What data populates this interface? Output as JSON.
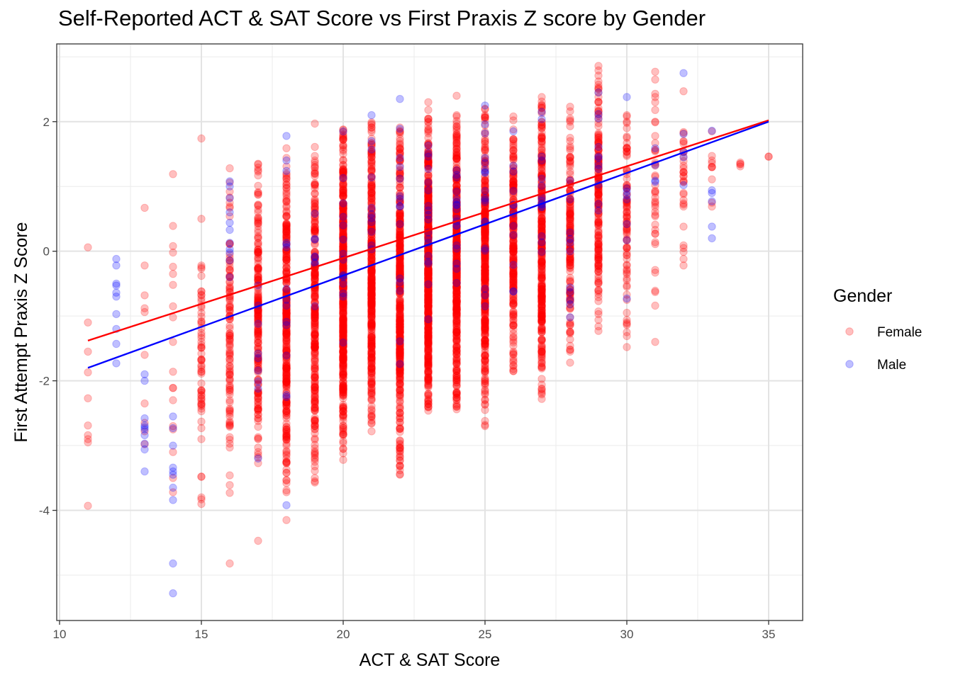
{
  "chart_data": {
    "type": "scatter",
    "title": "Self-Reported ACT & SAT Score vs First Praxis Z score by Gender",
    "xlabel": "ACT & SAT Score",
    "ylabel": "First Attempt Praxis Z Score",
    "xlim": [
      9.9,
      36.2
    ],
    "ylim": [
      -5.7,
      3.2
    ],
    "x_ticks": [
      10,
      15,
      20,
      25,
      30,
      35
    ],
    "y_ticks": [
      -4,
      -2,
      0,
      2
    ],
    "x_minor": [
      12.5,
      17.5,
      22.5,
      27.5,
      32.5
    ],
    "y_minor": [
      -5,
      -3,
      -1,
      1,
      3
    ],
    "grid": true,
    "legend_title": "Gender",
    "legend_position": "right",
    "point_alpha": 0.25,
    "series": [
      {
        "name": "Female",
        "color": "#ff0000",
        "trend_line": {
          "x": [
            11,
            35
          ],
          "y": [
            -1.38,
            2.02
          ]
        },
        "columns": [
          {
            "x": 11,
            "range": [
              -3.95,
              0.06
            ],
            "n": 4,
            "extra": [
              0.06,
              -1.55,
              -1.87,
              -2.27,
              -2.95,
              -3.93
            ]
          },
          {
            "x": 13,
            "range": [
              -3.0,
              0.67
            ],
            "n": 3,
            "extra": [
              0.67,
              -0.22,
              -0.68,
              -1.6,
              -2.35,
              -2.65,
              -2.98
            ]
          },
          {
            "x": 14,
            "range": [
              -3.72,
              1.19
            ],
            "n": 8,
            "extra": [
              1.19,
              0.39,
              -0.02,
              -0.52,
              -0.85,
              -1.4,
              -2.3,
              -2.75,
              -3.1,
              -3.5,
              -3.72
            ]
          },
          {
            "x": 15,
            "range": [
              -3.9,
              0.5
            ],
            "n": 60,
            "extra": [
              1.74,
              0.5,
              -3.9
            ]
          },
          {
            "x": 16,
            "range": [
              -3.75,
              1.1
            ],
            "n": 110,
            "extra": [
              1.28,
              -4.82
            ]
          },
          {
            "x": 17,
            "range": [
              -3.3,
              1.4
            ],
            "n": 200,
            "extra": [
              -4.47
            ]
          },
          {
            "x": 18,
            "range": [
              -3.8,
              1.6
            ],
            "n": 320,
            "extra": [
              -4.15,
              -3.58
            ]
          },
          {
            "x": 19,
            "range": [
              -3.7,
              1.8
            ],
            "n": 280,
            "extra": [
              1.97
            ]
          },
          {
            "x": 20,
            "range": [
              -3.22,
              1.95
            ],
            "n": 480,
            "extra": [
              -3.22
            ]
          },
          {
            "x": 21,
            "range": [
              -2.8,
              2.0
            ],
            "n": 380,
            "extra": [
              1.91
            ]
          },
          {
            "x": 22,
            "range": [
              -3.45,
              1.98
            ],
            "n": 420,
            "extra": [
              -3.38,
              -3.45
            ]
          },
          {
            "x": 23,
            "range": [
              -2.5,
              2.1
            ],
            "n": 600,
            "extra": [
              2.3,
              2.18
            ]
          },
          {
            "x": 24,
            "range": [
              -2.45,
              2.15
            ],
            "n": 480,
            "extra": [
              2.4
            ]
          },
          {
            "x": 25,
            "range": [
              -2.7,
              2.25
            ],
            "n": 400,
            "extra": [
              -2.68
            ]
          },
          {
            "x": 26,
            "range": [
              -1.85,
              2.1
            ],
            "n": 240,
            "extra": [
              -1.85
            ]
          },
          {
            "x": 27,
            "range": [
              -2.3,
              2.35
            ],
            "n": 320,
            "extra": [
              2.38
            ]
          },
          {
            "x": 28,
            "range": [
              -1.72,
              2.3
            ],
            "n": 160,
            "extra": [
              -1.72
            ]
          },
          {
            "x": 29,
            "range": [
              -1.3,
              2.85
            ],
            "n": 180,
            "extra": [
              2.86,
              2.51
            ]
          },
          {
            "x": 30,
            "range": [
              -1.48,
              2.1
            ],
            "n": 90,
            "extra": [
              -1.48
            ]
          },
          {
            "x": 31,
            "range": [
              -1.4,
              2.75
            ],
            "n": 40,
            "extra": [
              2.77,
              -1.4
            ]
          },
          {
            "x": 32,
            "range": [
              -0.22,
              2.47
            ],
            "n": 30,
            "extra": [
              2.47,
              -0.22
            ]
          },
          {
            "x": 33,
            "range": [
              0.69,
              1.85
            ],
            "n": 8,
            "extra": [
              1.85,
              0.69
            ]
          },
          {
            "x": 34,
            "range": [
              1.3,
              1.37
            ],
            "n": 2,
            "extra": [
              1.37,
              1.31
            ]
          },
          {
            "x": 35,
            "range": [
              1.46,
              1.46
            ],
            "n": 1,
            "extra": [
              1.46
            ]
          }
        ]
      },
      {
        "name": "Male",
        "color": "#0000ff",
        "trend_line": {
          "x": [
            11,
            35
          ],
          "y": [
            -1.8,
            2.0
          ]
        },
        "columns": [
          {
            "x": 12,
            "range": [
              -1.73,
              -0.12
            ],
            "n": 5,
            "extra": [
              -0.12,
              -0.22,
              -0.5,
              -0.7,
              -1.73
            ]
          },
          {
            "x": 13,
            "range": [
              -3.4,
              -1.9
            ],
            "n": 5,
            "extra": [
              -1.9,
              -2.0,
              -2.72,
              -2.84,
              -3.4
            ]
          },
          {
            "x": 14,
            "range": [
              -5.28,
              -2.5
            ],
            "n": 5,
            "extra": [
              -2.55,
              -3.0,
              -3.4,
              -3.65,
              -5.28
            ]
          },
          {
            "x": 16,
            "range": [
              -1.0,
              1.1
            ],
            "n": 8,
            "extra": [
              1.08,
              1.0,
              0.6
            ]
          },
          {
            "x": 17,
            "range": [
              -3.2,
              0.3
            ],
            "n": 8,
            "extra": [
              -3.2
            ]
          },
          {
            "x": 18,
            "range": [
              -3.9,
              1.78
            ],
            "n": 12,
            "extra": [
              1.78,
              1.4,
              -3.92
            ]
          },
          {
            "x": 19,
            "range": [
              -1.0,
              1.7
            ],
            "n": 8,
            "extra": []
          },
          {
            "x": 20,
            "range": [
              -1.5,
              1.9
            ],
            "n": 14,
            "extra": [
              1.85
            ]
          },
          {
            "x": 21,
            "range": [
              -0.6,
              2.1
            ],
            "n": 10,
            "extra": [
              2.1
            ]
          },
          {
            "x": 22,
            "range": [
              -2.0,
              2.35
            ],
            "n": 14,
            "extra": [
              2.35
            ]
          },
          {
            "x": 23,
            "range": [
              -1.5,
              2.2
            ],
            "n": 18,
            "extra": []
          },
          {
            "x": 24,
            "range": [
              -1.0,
              2.0
            ],
            "n": 18,
            "extra": []
          },
          {
            "x": 25,
            "range": [
              -1.1,
              2.25
            ],
            "n": 18,
            "extra": [
              2.25
            ]
          },
          {
            "x": 26,
            "range": [
              -0.8,
              2.0
            ],
            "n": 12,
            "extra": []
          },
          {
            "x": 27,
            "range": [
              -0.4,
              2.15
            ],
            "n": 14,
            "extra": [
              2.15
            ]
          },
          {
            "x": 28,
            "range": [
              -1.0,
              1.5
            ],
            "n": 10,
            "extra": [
              -1.02
            ]
          },
          {
            "x": 29,
            "range": [
              0.0,
              2.45
            ],
            "n": 10,
            "extra": [
              2.45
            ]
          },
          {
            "x": 30,
            "range": [
              -0.75,
              2.38
            ],
            "n": 6,
            "extra": [
              2.38,
              -0.73
            ]
          },
          {
            "x": 31,
            "range": [
              0.6,
              1.8
            ],
            "n": 4,
            "extra": []
          },
          {
            "x": 32,
            "range": [
              1.0,
              2.75
            ],
            "n": 3,
            "extra": [
              2.75,
              1.02
            ]
          },
          {
            "x": 33,
            "range": [
              0.2,
              1.86
            ],
            "n": 3,
            "extra": [
              1.86,
              0.9,
              0.2
            ]
          }
        ]
      }
    ]
  }
}
